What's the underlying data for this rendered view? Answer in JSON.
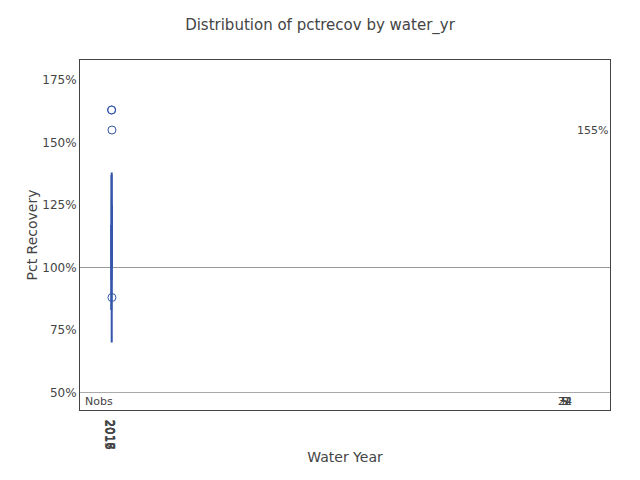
{
  "chart_data": {
    "type": "box",
    "title": "Distribution of pctrecov by water_yr",
    "xlabel": "Water Year",
    "ylabel": "Pct Recovery",
    "categories": [
      "2015",
      "2016",
      "2017",
      "2018"
    ],
    "q1": [
      100.0,
      105.0,
      96.0,
      108.0
    ],
    "median": [
      108.0,
      116.0,
      101.0,
      112.0
    ],
    "q3": [
      111.0,
      128.0,
      119.0,
      116.0
    ],
    "mean": [
      103.5,
      115.0,
      106.0,
      113.0
    ],
    "whisker_low": [
      83.0,
      95.0,
      70.0,
      100.0
    ],
    "whisker_high": [
      117.0,
      137.0,
      138.0,
      125.0
    ],
    "outliers": [
      [],
      [
        163.0
      ],
      [
        163.0
      ],
      [
        88.0,
        155.0
      ]
    ],
    "nobs_label": "Nobs",
    "nobs": [
      5,
      32,
      24,
      9
    ],
    "annotations": [
      {
        "text": "155%",
        "category": "2018",
        "y": 155.0
      }
    ],
    "reference_lines": [
      {
        "y": 100.0,
        "color": "#999999"
      },
      {
        "y": 50,
        "color": "#aaaaaa"
      }
    ],
    "color": "#3355aa",
    "marker": "circle",
    "ylim": [
      43,
      183
    ],
    "yticks": [
      {
        "value": 50,
        "label": "50%"
      },
      {
        "value": 75,
        "label": "75%"
      },
      {
        "value": 100,
        "label": "100%"
      },
      {
        "value": 125,
        "label": "125%"
      },
      {
        "value": 150,
        "label": "150%"
      },
      {
        "value": 175,
        "label": "175%"
      }
    ],
    "grid": false
  }
}
